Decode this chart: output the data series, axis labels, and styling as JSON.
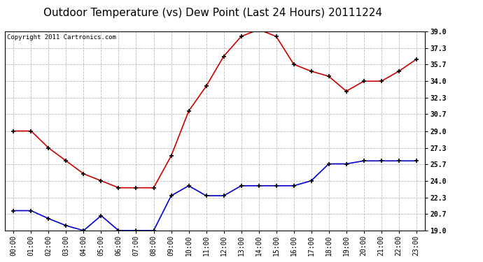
{
  "title": "Outdoor Temperature (vs) Dew Point (Last 24 Hours) 20111224",
  "copyright_text": "Copyright 2011 Cartronics.com",
  "hours": [
    "00:00",
    "01:00",
    "02:00",
    "03:00",
    "04:00",
    "05:00",
    "06:00",
    "07:00",
    "08:00",
    "09:00",
    "10:00",
    "11:00",
    "12:00",
    "13:00",
    "14:00",
    "15:00",
    "16:00",
    "17:00",
    "18:00",
    "19:00",
    "20:00",
    "21:00",
    "22:00",
    "23:00"
  ],
  "temperature": [
    29.0,
    29.0,
    27.3,
    26.0,
    24.7,
    24.0,
    23.3,
    23.3,
    23.3,
    26.5,
    31.0,
    33.5,
    36.5,
    38.5,
    39.2,
    38.5,
    35.7,
    35.0,
    34.5,
    33.0,
    34.0,
    34.0,
    35.0,
    36.2
  ],
  "dew_point": [
    21.0,
    21.0,
    20.2,
    19.5,
    19.0,
    20.5,
    19.0,
    19.0,
    19.0,
    22.5,
    23.5,
    22.5,
    22.5,
    23.5,
    23.5,
    23.5,
    23.5,
    24.0,
    25.7,
    25.7,
    26.0,
    26.0,
    26.0,
    26.0
  ],
  "temp_color": "#cc0000",
  "dew_color": "#0000cc",
  "marker": "+",
  "marker_color": "#000000",
  "marker_size": 5,
  "marker_linewidth": 1.2,
  "ylim": [
    19.0,
    39.0
  ],
  "yticks": [
    19.0,
    20.7,
    22.3,
    24.0,
    25.7,
    27.3,
    29.0,
    30.7,
    32.3,
    34.0,
    35.7,
    37.3,
    39.0
  ],
  "grid_color": "#bbbbbb",
  "background_color": "#ffffff",
  "plot_bg_color": "#ffffff",
  "title_fontsize": 11,
  "copyright_fontsize": 6.5,
  "tick_fontsize": 7,
  "linewidth": 1.2
}
